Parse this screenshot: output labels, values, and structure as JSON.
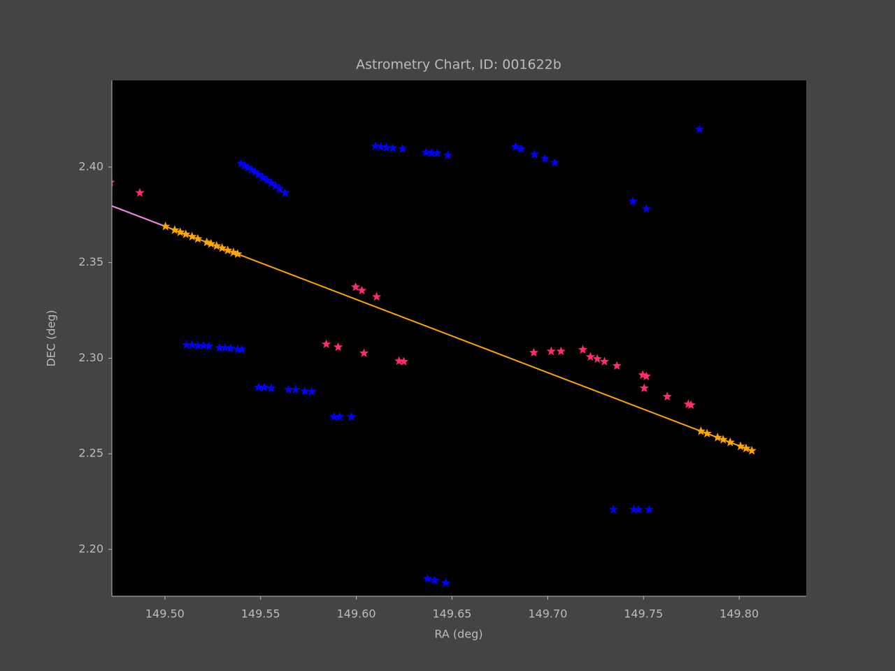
{
  "chart_data": {
    "type": "scatter",
    "title": "Astrometry Chart, ID: 001622b",
    "xlabel": "RA (deg)",
    "ylabel": "DEC (deg)",
    "xlim": [
      149.4723,
      149.835
    ],
    "ylim": [
      2.1755,
      2.4453
    ],
    "xticks": [
      {
        "value": 149.5,
        "label": "149.50"
      },
      149.55,
      {
        "value": 149.6,
        "label": "149.60"
      },
      149.65,
      {
        "value": 149.7,
        "label": "149.70"
      },
      149.75,
      {
        "value": 149.8,
        "label": "149.80"
      }
    ],
    "yticks": [
      {
        "value": 2.2,
        "label": "2.20"
      },
      2.25,
      {
        "value": 2.3,
        "label": "2.30"
      },
      2.35,
      {
        "value": 2.4,
        "label": "2.40"
      }
    ],
    "grid": false,
    "series": [
      {
        "mode": "markers",
        "color": "#0000ff",
        "x": [
          149.5398,
          149.5416,
          149.5434,
          149.5453,
          149.5471,
          149.5489,
          149.5511,
          149.5533,
          149.5555,
          149.5577,
          149.5599,
          149.5628,
          149.6099,
          149.6128,
          149.6157,
          149.619,
          149.6241,
          149.6365,
          149.6394,
          149.6423,
          149.6478,
          149.6832,
          149.6861,
          149.6931,
          149.6985,
          149.7036,
          149.7792,
          149.7445,
          149.7515,
          149.5113,
          149.5142,
          149.5172,
          149.5201,
          149.523,
          149.5285,
          149.5314,
          149.5343,
          149.538,
          149.5401,
          149.5489,
          149.5518,
          149.5555,
          149.5646,
          149.5683,
          149.573,
          149.5766,
          149.5883,
          149.5912,
          149.5974,
          149.6372,
          149.6409,
          149.6467,
          149.7343,
          149.7449,
          149.7474,
          149.7529,
          149.5843
        ],
        "y": [
          2.4018,
          2.4007,
          2.3996,
          2.3985,
          2.3974,
          2.396,
          2.3945,
          2.3931,
          2.3916,
          2.3901,
          2.3887,
          2.3865,
          2.4109,
          2.4106,
          2.4102,
          2.4099,
          2.4095,
          2.4077,
          2.4073,
          2.4073,
          2.4062,
          2.4106,
          2.4095,
          2.4066,
          2.4044,
          2.4022,
          2.4197,
          2.3821,
          2.3781,
          2.3069,
          2.3069,
          2.3065,
          2.3065,
          2.3062,
          2.3055,
          2.3055,
          2.3051,
          2.3047,
          2.3045,
          2.2847,
          2.2847,
          2.2843,
          2.2836,
          2.2836,
          2.2828,
          2.2825,
          2.2693,
          2.2693,
          2.2693,
          2.1847,
          2.1838,
          2.1825,
          2.2208,
          2.2208,
          2.2208,
          2.2208,
          2.3073
        ]
      },
      {
        "mode": "markers",
        "color": "#ff2d6b",
        "x": [
          149.4715,
          149.4869,
          149.5996,
          149.6029,
          149.6106,
          149.5843,
          149.5905,
          149.604,
          149.6223,
          149.6248,
          149.6927,
          149.7018,
          149.7069,
          149.7183,
          149.7223,
          149.7259,
          149.7296,
          149.7361,
          149.7496,
          149.7515,
          149.7504,
          149.7624,
          149.7734,
          149.7748
        ],
        "y": [
          2.392,
          2.3865,
          2.3372,
          2.3354,
          2.3321,
          2.3073,
          2.3058,
          2.3026,
          2.2985,
          2.2982,
          2.3029,
          2.3036,
          2.3036,
          2.3044,
          2.3007,
          2.2996,
          2.2982,
          2.296,
          2.2912,
          2.2905,
          2.2843,
          2.2799,
          2.2759,
          2.2755
        ]
      },
      {
        "mode": "lines",
        "color": "#ffa500",
        "x": [
          149.4723,
          149.807
        ],
        "y": [
          2.3796,
          2.2515
        ]
      },
      {
        "mode": "lines",
        "color": "#ee82ee",
        "x": [
          149.4723,
          149.5003
        ],
        "y": [
          2.3796,
          2.3689
        ]
      },
      {
        "mode": "markers",
        "color": "#ffa500",
        "x": [
          149.5003,
          149.5051,
          149.508,
          149.5109,
          149.5142,
          149.5172,
          149.5219,
          149.5241,
          149.527,
          149.5299,
          149.5328,
          149.5358,
          149.538,
          149.78,
          149.7832,
          149.7887,
          149.7916,
          149.7953,
          149.8007,
          149.8036,
          149.8066
        ],
        "y": [
          2.3689,
          2.367,
          2.3659,
          2.3648,
          2.3636,
          2.3624,
          2.3606,
          2.3598,
          2.3587,
          2.3576,
          2.3564,
          2.3553,
          2.3545,
          2.2618,
          2.2606,
          2.2585,
          2.2574,
          2.256,
          2.2539,
          2.2528,
          2.2516
        ]
      }
    ]
  }
}
